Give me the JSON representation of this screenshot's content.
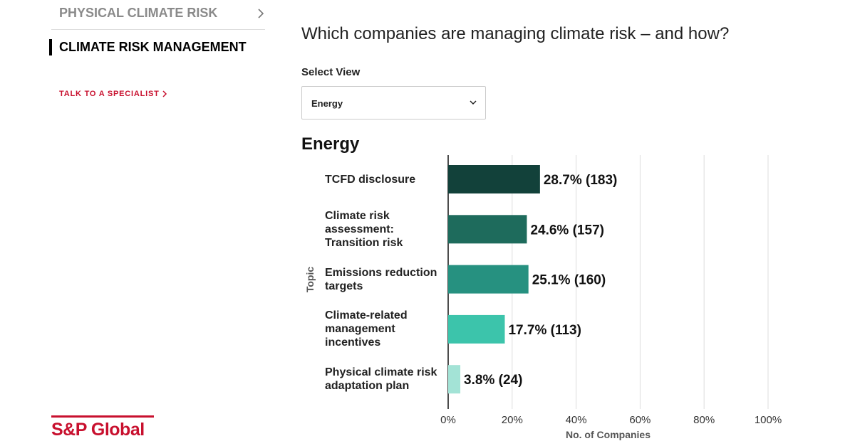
{
  "nav": {
    "items": [
      "PHYSICAL CLIMATE RISK",
      "CLIMATE RISK MANAGEMENT"
    ],
    "cta": "TALK TO A SPECIALIST"
  },
  "logo": "S&P Global",
  "heading": "Which companies are managing climate risk – and how?",
  "select": {
    "label": "Select View",
    "value": "Energy"
  },
  "chart_data": {
    "type": "hbar",
    "title": "Energy",
    "categories": [
      "TCFD disclosure",
      "Climate risk assessment: Transition risk",
      "Emissions reduction targets",
      "Climate-related management incentives",
      "Physical climate risk adaptation plan"
    ],
    "values": [
      28.7,
      24.6,
      25.1,
      17.7,
      3.8
    ],
    "value_labels": [
      "28.7% (183)",
      "24.6% (157)",
      "25.1% (160)",
      "17.7% (113)",
      "3.8% (24)"
    ],
    "colors": [
      "#12413a",
      "#1e6b5c",
      "#269180",
      "#3cc4ab",
      "#a3e3d6"
    ],
    "xlim": [
      0,
      100
    ],
    "xticks": [
      {
        "value": 0,
        "label": "0%"
      },
      {
        "value": 20,
        "label": "20%"
      },
      {
        "value": 40,
        "label": "40%"
      },
      {
        "value": 60,
        "label": "60%"
      },
      {
        "value": 80,
        "label": "80%"
      },
      {
        "value": 100,
        "label": "100%"
      }
    ],
    "x_label": "No. of Companies",
    "y_label": "Topic",
    "grid": true
  }
}
